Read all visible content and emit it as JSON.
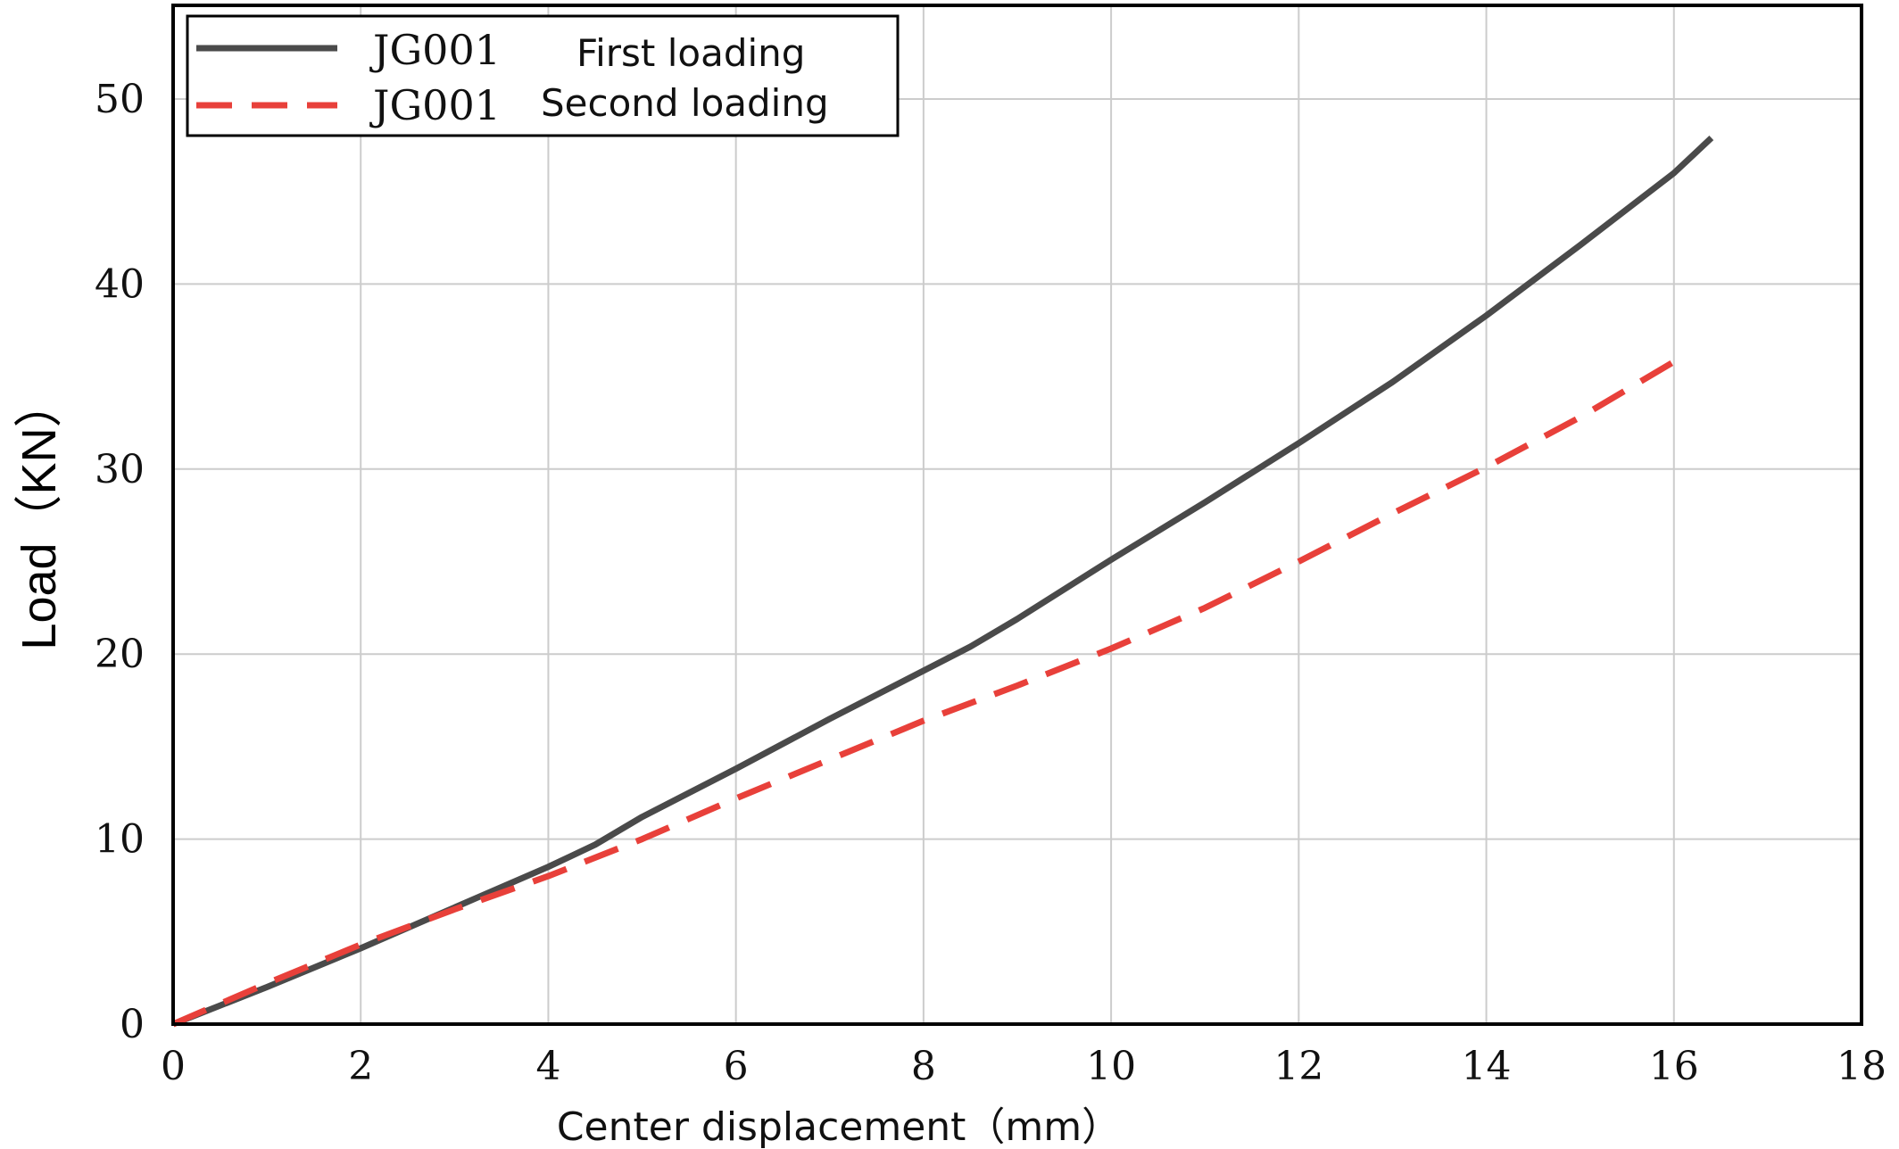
{
  "chart_data": {
    "type": "line",
    "xlabel": "Center displacement（mm）",
    "ylabel": "Load（KN）",
    "xlim": [
      0,
      18
    ],
    "ylim": [
      0,
      55
    ],
    "xticks": [
      0,
      2,
      4,
      6,
      8,
      10,
      12,
      14,
      16,
      18
    ],
    "yticks": [
      0,
      10,
      20,
      30,
      40,
      50
    ],
    "grid": true,
    "legend_position": "top-left",
    "series": [
      {
        "name": "JG001 First loading",
        "legend_id": "JG001",
        "legend_desc": "First loading",
        "color": "#4a4a4a",
        "style": "solid",
        "x": [
          0,
          1,
          2,
          3,
          4,
          4.5,
          5,
          6,
          7,
          8,
          8.5,
          9,
          10,
          11,
          12,
          13,
          14,
          15,
          16,
          16.4
        ],
        "y": [
          0,
          2.0,
          4.1,
          6.3,
          8.5,
          9.7,
          11.2,
          13.8,
          16.5,
          19.1,
          20.4,
          21.9,
          25.1,
          28.2,
          31.4,
          34.7,
          38.3,
          42.1,
          46.0,
          47.9
        ]
      },
      {
        "name": "JG001Second loading",
        "legend_id": "JG001",
        "legend_desc": "Second loading",
        "color": "#e8403a",
        "style": "dashed",
        "x": [
          0,
          1,
          2,
          3,
          4,
          5,
          6,
          7,
          8,
          9,
          10,
          11,
          12,
          13,
          14,
          15,
          16
        ],
        "y": [
          0,
          2.2,
          4.3,
          6.2,
          8.0,
          10.0,
          12.2,
          14.3,
          16.4,
          18.3,
          20.3,
          22.5,
          25.0,
          27.6,
          30.1,
          32.8,
          35.8
        ]
      }
    ]
  }
}
